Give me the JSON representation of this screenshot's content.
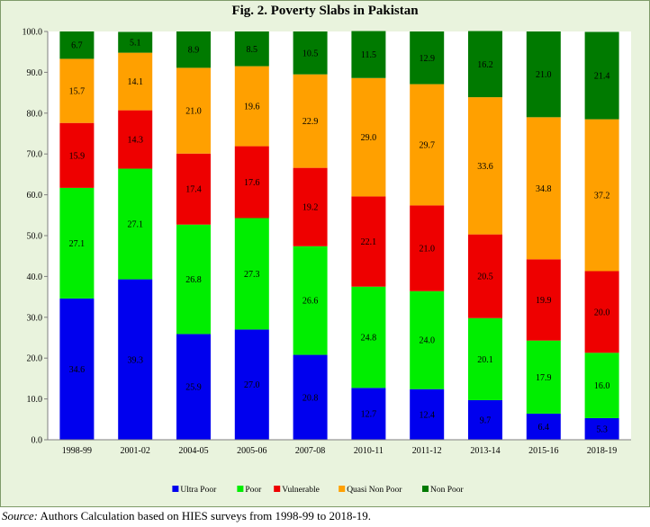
{
  "figure": {
    "title": "Fig. 2.  Poverty Slabs in Pakistan"
  },
  "source": {
    "label": "Source:",
    "text": " Authors Calculation based on HIES surveys from 1998-99 to 2018-19."
  },
  "chart_data": {
    "type": "bar",
    "stacked": true,
    "title": "",
    "xlabel": "",
    "ylabel": "",
    "ylim": [
      0,
      100
    ],
    "yticks": [
      0,
      10,
      20,
      30,
      40,
      50,
      60,
      70,
      80,
      90,
      100
    ],
    "ytick_labels": [
      "0.0",
      "10.0",
      "20.0",
      "30.0",
      "40.0",
      "50.0",
      "60.0",
      "70.0",
      "80.0",
      "90.0",
      "100.0"
    ],
    "grid": false,
    "legend_position": "bottom",
    "categories": [
      "1998-99",
      "2001-02",
      "2004-05",
      "2005-06",
      "2007-08",
      "2010-11",
      "2011-12",
      "2013-14",
      "2015-16",
      "2018-19"
    ],
    "series": [
      {
        "name": "Ultra Poor",
        "color": "#0000ee",
        "values": [
          34.6,
          39.3,
          25.9,
          27.0,
          20.8,
          12.7,
          12.4,
          9.7,
          6.4,
          5.3
        ],
        "labels": [
          "34.6",
          "39.3",
          "25.9",
          "27.0",
          "20.8",
          "12.7",
          "12.4",
          "9.7",
          "6.4",
          "5.3"
        ]
      },
      {
        "name": "Poor",
        "color": "#00ee00",
        "values": [
          27.1,
          27.1,
          26.8,
          27.3,
          26.6,
          24.8,
          24.0,
          20.1,
          17.9,
          16.0
        ],
        "labels": [
          "27.1",
          "27.1",
          "26.8",
          "27.3",
          "26.6",
          "24.8",
          "24.0",
          "20.1",
          "17.9",
          "16.0"
        ]
      },
      {
        "name": "Vulnerable",
        "color": "#ee0000",
        "values": [
          15.9,
          14.3,
          17.4,
          17.6,
          19.2,
          22.1,
          21.0,
          20.5,
          19.9,
          20.0
        ],
        "labels": [
          "15.9",
          "14.3",
          "17.4",
          "17.6",
          "19.2",
          "22.1",
          "21.0",
          "20.5",
          "19.9",
          "20.0"
        ]
      },
      {
        "name": "Quasi Non Poor",
        "color": "#ffa000",
        "values": [
          15.7,
          14.1,
          21.0,
          19.6,
          22.9,
          29.0,
          29.7,
          33.6,
          34.8,
          37.2
        ],
        "labels": [
          "15.7",
          "14.1",
          "21.0",
          "19.6",
          "22.9",
          "29.0",
          "29.7",
          "33.6",
          "34.8",
          "37.2"
        ]
      },
      {
        "name": "Non Poor",
        "color": "#007a00",
        "values": [
          6.7,
          5.1,
          8.9,
          8.5,
          10.5,
          11.5,
          12.9,
          16.2,
          21.0,
          21.4
        ],
        "labels": [
          "6.7",
          "5.1",
          "8.9",
          "8.5",
          "10.5",
          "11.5",
          "12.9",
          "16.2",
          "21.0",
          "21.4"
        ]
      }
    ]
  }
}
